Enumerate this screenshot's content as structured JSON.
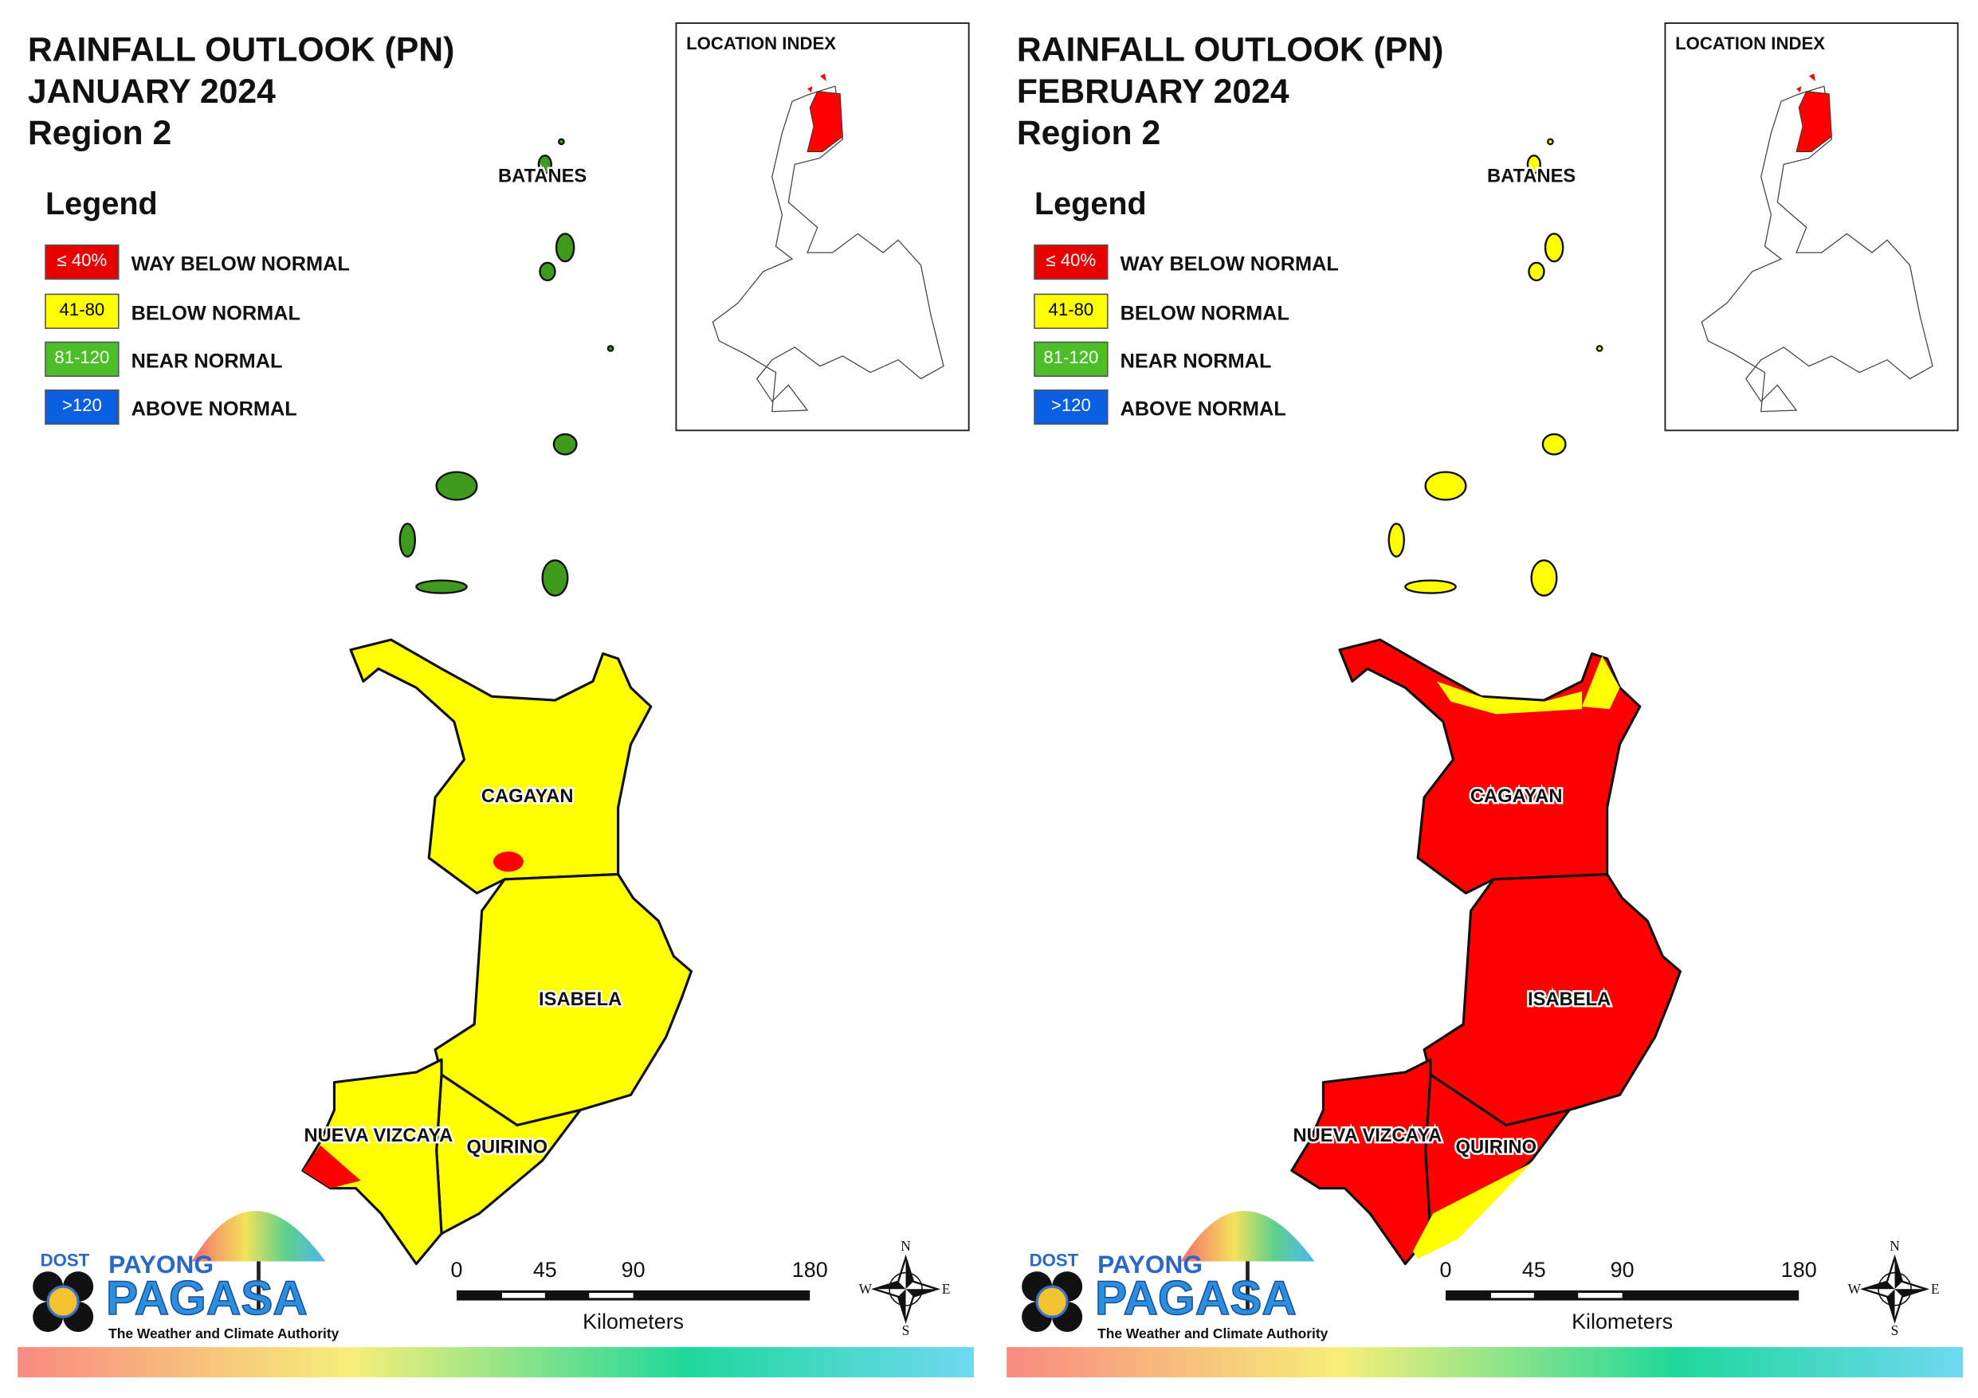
{
  "panels": [
    {
      "title": [
        "RAINFALL OUTLOOK (PN)",
        "JANUARY 2024",
        "Region 2"
      ],
      "location_index": "LOCATION INDEX",
      "legend": {
        "title": "Legend",
        "items": [
          {
            "swatch": "≤ 40%",
            "label": "WAY BELOW NORMAL",
            "color": "#e60000"
          },
          {
            "swatch": "41-80",
            "label": "BELOW NORMAL",
            "color": "#ffff00"
          },
          {
            "swatch": "81-120",
            "label": "NEAR NORMAL",
            "color": "#4cbf28"
          },
          {
            "swatch": ">120",
            "label": "ABOVE NORMAL",
            "color": "#0a5fe0"
          }
        ]
      },
      "batanes": "BATANES",
      "islands_color": "#3f9a1e",
      "provinces": [
        {
          "name": "CAGAYAN",
          "color": "#ffff00"
        },
        {
          "name": "ISABELA",
          "color": "#ffff00"
        },
        {
          "name": "QUIRINO",
          "color": "#ffff00"
        },
        {
          "name": "NUEVA VIZCAYA",
          "color": "#ffff00"
        }
      ],
      "patch_colors": [
        "#ff0000",
        "#ff0000"
      ],
      "scale": {
        "ticks": [
          "0",
          "45",
          "90",
          "180"
        ],
        "unit": "Kilometers"
      },
      "compass": [
        "N",
        "E",
        "S",
        "W"
      ],
      "logo": {
        "agency": "DOST",
        "brand": "PAYONG",
        "name": "PAGASA",
        "tagline": "The Weather and Climate Authority"
      }
    },
    {
      "title": [
        "RAINFALL OUTLOOK (PN)",
        "FEBRUARY 2024",
        "Region 2"
      ],
      "location_index": "LOCATION INDEX",
      "legend": {
        "title": "Legend",
        "items": [
          {
            "swatch": "≤ 40%",
            "label": "WAY BELOW NORMAL",
            "color": "#e60000"
          },
          {
            "swatch": "41-80",
            "label": "BELOW NORMAL",
            "color": "#ffff00"
          },
          {
            "swatch": "81-120",
            "label": "NEAR NORMAL",
            "color": "#4cbf28"
          },
          {
            "swatch": ">120",
            "label": "ABOVE NORMAL",
            "color": "#0a5fe0"
          }
        ]
      },
      "batanes": "BATANES",
      "islands_color": "#ffff00",
      "provinces": [
        {
          "name": "CAGAYAN",
          "color": "#ff0000"
        },
        {
          "name": "ISABELA",
          "color": "#ff0000"
        },
        {
          "name": "QUIRINO",
          "color": "#ff0000"
        },
        {
          "name": "NUEVA VIZCAYA",
          "color": "#ff0000"
        }
      ],
      "patch_colors": [
        "#ffff00",
        "#ffff00",
        "#ffff00"
      ],
      "scale": {
        "ticks": [
          "0",
          "45",
          "90",
          "180"
        ],
        "unit": "Kilometers"
      },
      "compass": [
        "N",
        "E",
        "S",
        "W"
      ],
      "logo": {
        "agency": "DOST",
        "brand": "PAYONG",
        "name": "PAGASA",
        "tagline": "The Weather and Climate Authority"
      }
    }
  ]
}
